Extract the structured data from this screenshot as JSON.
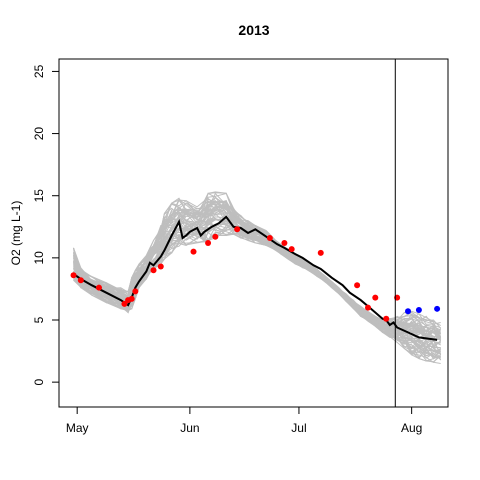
{
  "chart_data": {
    "type": "line",
    "title": "2013",
    "xlabel": "",
    "ylabel": "O2 (mg L-1)",
    "x_ticks": [
      {
        "label": "May",
        "day": 0
      },
      {
        "label": "Jun",
        "day": 31
      },
      {
        "label": "Jul",
        "day": 61
      },
      {
        "label": "Aug",
        "day": 92
      }
    ],
    "y_ticks": [
      0,
      5,
      10,
      15,
      20,
      25
    ],
    "xlim_days": [
      -5,
      102
    ],
    "ylim": [
      -2,
      26
    ],
    "vline_day": 87.5,
    "grid": false,
    "colors": {
      "ensemble": "#bebebe",
      "median": "#000000",
      "observed": "#ff0000",
      "forecast_obs": "#0000ff"
    },
    "ensemble": {
      "count": 60,
      "x_days": [
        -1,
        1,
        4,
        8,
        12,
        14,
        15,
        16,
        17,
        19,
        20,
        21,
        23,
        24,
        26,
        28,
        30,
        33,
        35,
        36,
        38,
        41,
        43,
        45,
        47,
        49,
        52,
        54,
        56,
        58,
        60,
        62,
        64,
        66,
        68,
        70,
        72,
        74,
        76,
        78,
        80,
        82,
        84,
        86,
        88,
        90,
        92,
        94,
        96,
        98,
        100
      ],
      "lower": [
        8.2,
        7.6,
        7.0,
        6.4,
        5.9,
        5.6,
        5.9,
        6.7,
        7.6,
        8.3,
        8.8,
        9.1,
        9.5,
        9.9,
        10.4,
        10.8,
        11.0,
        11.2,
        11.3,
        11.4,
        11.6,
        11.8,
        11.9,
        11.6,
        11.4,
        11.2,
        11.0,
        10.7,
        10.3,
        9.9,
        9.5,
        9.2,
        8.9,
        8.5,
        8.1,
        7.6,
        7.1,
        6.5,
        5.9,
        5.3,
        4.9,
        4.5,
        4.0,
        3.6,
        3.2,
        2.7,
        2.2,
        1.9,
        1.7,
        1.6,
        1.5
      ],
      "upper": [
        10.8,
        9.2,
        8.5,
        8.0,
        7.6,
        7.3,
        8.4,
        9.0,
        9.5,
        10.2,
        10.8,
        11.4,
        12.6,
        13.6,
        14.4,
        14.8,
        14.6,
        14.2,
        14.6,
        15.2,
        15.5,
        15.2,
        14.0,
        13.4,
        13.0,
        12.6,
        12.2,
        11.6,
        11.1,
        10.7,
        10.3,
        9.9,
        9.5,
        9.1,
        8.6,
        8.1,
        7.6,
        7.1,
        6.6,
        6.1,
        5.7,
        5.3,
        5.0,
        5.1,
        5.3,
        5.6,
        5.7,
        5.5,
        5.3,
        5.0,
        4.8
      ]
    },
    "median": {
      "x_days": [
        -1,
        1,
        4,
        8,
        12,
        14,
        15,
        16,
        17,
        19,
        20,
        21,
        23,
        24,
        26,
        28,
        29,
        30,
        31,
        33,
        34,
        35,
        37,
        39,
        41,
        43,
        45,
        47,
        49,
        51,
        53,
        55,
        57,
        60,
        62,
        65,
        67,
        70,
        73,
        75,
        78,
        80,
        82,
        84,
        85,
        86,
        87,
        88,
        91,
        94,
        99
      ],
      "y": [
        8.7,
        8.3,
        7.8,
        7.2,
        6.6,
        6.2,
        6.8,
        7.6,
        8.1,
        8.9,
        9.6,
        9.4,
        10.1,
        10.6,
        11.8,
        12.9,
        11.6,
        11.8,
        12.1,
        12.4,
        11.8,
        12.1,
        12.5,
        12.8,
        13.3,
        12.5,
        12.4,
        12.0,
        12.3,
        11.9,
        11.5,
        11.1,
        10.8,
        10.3,
        10.0,
        9.4,
        9.1,
        8.4,
        7.8,
        7.2,
        6.6,
        6.1,
        5.6,
        5.1,
        5.0,
        4.6,
        4.8,
        4.4,
        4.0,
        3.6,
        3.4
      ]
    },
    "observed": {
      "x_days": [
        -1,
        1,
        6,
        13,
        14,
        15,
        16,
        21,
        23,
        32,
        36,
        38,
        44,
        53,
        57,
        59,
        67,
        77,
        80,
        82,
        85,
        88
      ],
      "y": [
        8.6,
        8.2,
        7.6,
        6.3,
        6.6,
        6.7,
        7.3,
        9.0,
        9.3,
        10.5,
        11.2,
        11.7,
        12.3,
        11.6,
        11.2,
        10.7,
        10.4,
        7.8,
        6.0,
        6.8,
        5.1,
        6.8
      ]
    },
    "forecast_obs": {
      "x_days": [
        91,
        94,
        99
      ],
      "y": [
        5.7,
        5.8,
        5.9
      ]
    }
  }
}
